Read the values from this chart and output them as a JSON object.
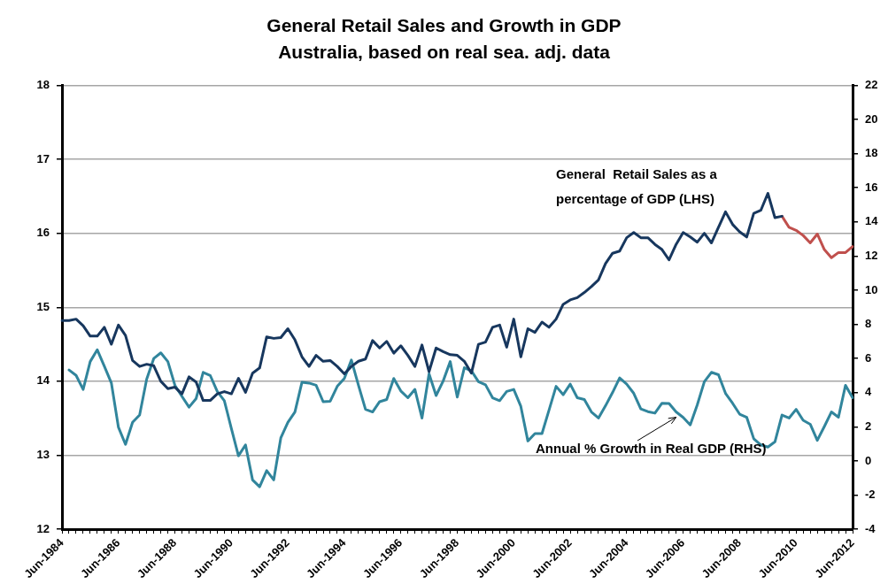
{
  "chart_data": {
    "type": "line",
    "title": "General Retail Sales and Growth in GDP",
    "subtitle": "Australia, based on real sea. adj. data",
    "categories": [
      "Jun-1984",
      null,
      null,
      null,
      null,
      null,
      null,
      null,
      "Jun-1986",
      null,
      null,
      null,
      null,
      null,
      null,
      null,
      "Jun-1988",
      null,
      null,
      null,
      null,
      null,
      null,
      null,
      "Jun-1990",
      null,
      null,
      null,
      null,
      null,
      null,
      null,
      "Jun-1992",
      null,
      null,
      null,
      null,
      null,
      null,
      null,
      "Jun-1994",
      null,
      null,
      null,
      null,
      null,
      null,
      null,
      "Jun-1996",
      null,
      null,
      null,
      null,
      null,
      null,
      null,
      "Jun-1998",
      null,
      null,
      null,
      null,
      null,
      null,
      null,
      "Jun-2000",
      null,
      null,
      null,
      null,
      null,
      null,
      null,
      "Jun-2002",
      null,
      null,
      null,
      null,
      null,
      null,
      null,
      "Jun-2004",
      null,
      null,
      null,
      null,
      null,
      null,
      null,
      "Jun-2006",
      null,
      null,
      null,
      null,
      null,
      null,
      null,
      "Jun-2008",
      null,
      null,
      null,
      null,
      null,
      null,
      null,
      "Jun-2010",
      null,
      null,
      null,
      null,
      null,
      null,
      null,
      "Jun-2012"
    ],
    "series": [
      {
        "name": "General  Retail Sales as a percentage of GDP (LHS)",
        "color": "#17375e",
        "values": [
          14.82,
          14.82,
          14.84,
          14.75,
          14.61,
          14.61,
          14.73,
          14.5,
          14.76,
          14.62,
          14.28,
          14.2,
          14.23,
          14.21,
          14.0,
          13.9,
          13.92,
          13.83,
          14.06,
          13.99,
          13.74,
          13.74,
          13.83,
          13.86,
          13.83,
          14.04,
          13.85,
          14.11,
          14.18,
          14.6,
          14.58,
          14.59,
          14.71,
          14.56,
          14.33,
          14.2,
          14.35,
          14.27,
          14.28,
          14.2,
          14.1,
          14.2,
          14.27,
          14.3,
          14.55,
          14.45,
          14.54,
          14.38,
          14.48,
          14.35,
          14.2,
          14.49,
          14.13,
          14.45,
          14.4,
          14.36,
          14.35,
          14.27,
          14.11,
          14.5,
          14.53,
          14.73,
          14.76,
          14.46,
          14.84,
          14.33,
          14.71,
          14.66,
          14.8,
          14.73,
          14.84,
          15.04,
          15.1,
          15.13,
          15.2,
          15.28,
          15.37,
          15.59,
          15.73,
          15.76,
          15.94,
          16.01,
          15.94,
          15.94,
          15.85,
          15.78,
          15.64,
          15.85,
          16.01,
          15.95,
          15.88,
          16.0,
          15.87,
          16.08,
          16.29,
          16.12,
          16.02,
          15.95,
          16.27,
          16.31,
          16.54,
          16.21,
          16.23,
          null,
          null,
          null,
          null,
          null,
          null,
          null,
          null,
          null,
          null
        ]
      },
      {
        "color": "#c0504d",
        "values": [
          null,
          null,
          null,
          null,
          null,
          null,
          null,
          null,
          null,
          null,
          null,
          null,
          null,
          null,
          null,
          null,
          null,
          null,
          null,
          null,
          null,
          null,
          null,
          null,
          null,
          null,
          null,
          null,
          null,
          null,
          null,
          null,
          null,
          null,
          null,
          null,
          null,
          null,
          null,
          null,
          null,
          null,
          null,
          null,
          null,
          null,
          null,
          null,
          null,
          null,
          null,
          null,
          null,
          null,
          null,
          null,
          null,
          null,
          null,
          null,
          null,
          null,
          null,
          null,
          null,
          null,
          null,
          null,
          null,
          null,
          null,
          null,
          null,
          null,
          null,
          null,
          null,
          null,
          null,
          null,
          null,
          null,
          null,
          null,
          null,
          null,
          null,
          null,
          null,
          null,
          null,
          null,
          null,
          null,
          null,
          null,
          null,
          null,
          null,
          null,
          null,
          null,
          16.23,
          16.08,
          16.04,
          15.97,
          15.87,
          15.99,
          15.78,
          15.67,
          15.74,
          15.74,
          15.82
        ]
      },
      {
        "name": "Annual % Growth in Real GDP (RHS)",
        "color": "#31859c",
        "axis": "y2",
        "values": [
          null,
          5.33,
          5.01,
          4.19,
          5.82,
          6.51,
          5.55,
          4.56,
          1.97,
          0.97,
          2.26,
          2.69,
          4.79,
          6.0,
          6.33,
          5.82,
          4.43,
          3.78,
          3.15,
          3.65,
          5.19,
          5.01,
          4.07,
          3.53,
          1.9,
          0.3,
          0.94,
          -1.11,
          -1.51,
          -0.57,
          -1.11,
          1.35,
          2.26,
          2.87,
          4.61,
          4.56,
          4.43,
          3.47,
          3.5,
          4.37,
          4.83,
          5.91,
          4.43,
          3.02,
          2.87,
          3.47,
          3.6,
          4.83,
          4.1,
          3.7,
          4.19,
          2.51,
          5.1,
          3.83,
          4.68,
          5.82,
          3.74,
          5.46,
          5.28,
          4.64,
          4.46,
          3.7,
          3.53,
          4.07,
          4.19,
          3.2,
          1.17,
          1.6,
          1.6,
          2.98,
          4.37,
          3.88,
          4.5,
          3.7,
          3.6,
          2.87,
          2.51,
          3.23,
          4.01,
          4.86,
          4.5,
          3.96,
          3.05,
          2.89,
          2.8,
          3.38,
          3.36,
          2.87,
          2.55,
          2.11,
          3.29,
          4.64,
          5.19,
          5.05,
          3.96,
          3.38,
          2.74,
          2.56,
          1.3,
          0.94,
          0.81,
          1.12,
          2.69,
          2.51,
          3.02,
          2.38,
          2.15,
          1.21,
          2.02,
          2.87,
          2.56,
          4.43,
          3.7
        ]
      }
    ],
    "ylim": [
      12,
      18
    ],
    "yticks": [
      12,
      13,
      14,
      15,
      16,
      17,
      18
    ],
    "y2lim": [
      -4,
      22
    ],
    "y2ticks": [
      -4,
      -2,
      0,
      2,
      4,
      6,
      8,
      10,
      12,
      14,
      16,
      18,
      20,
      22
    ],
    "grid": "y",
    "legend": false,
    "marker": "none",
    "line_style": "solid"
  }
}
